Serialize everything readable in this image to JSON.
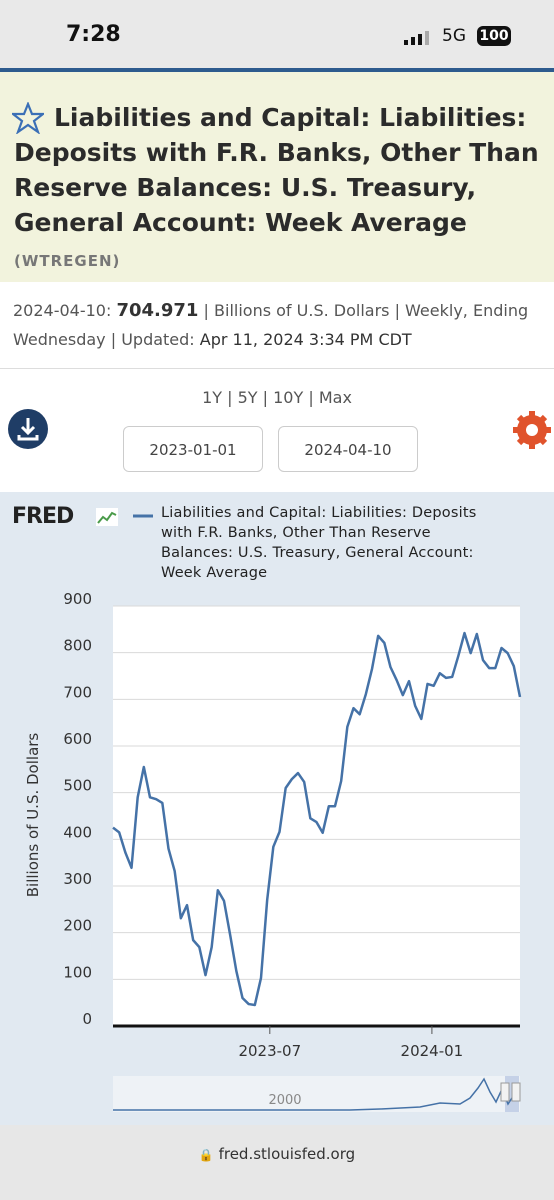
{
  "status": {
    "time": "7:28",
    "network": "5G",
    "battery": "100"
  },
  "header": {
    "title": "Liabilities and Capital: Liabilities: Deposits with F.R. Banks, Other Than Reserve Balances: U.S. Treasury, General Account: Week Average",
    "series_id": "(WTREGEN)"
  },
  "info": {
    "date": "2024-04-10:",
    "value": "704.971",
    "units": "| Billions of U.S. Dollars | Weekly, Ending Wednesday | Updated:",
    "updated": "Apr 11, 2024 3:34 PM CDT"
  },
  "range_links": [
    "1Y",
    "5Y",
    "10Y",
    "Max"
  ],
  "range_separator": "|",
  "date_inputs": [
    "2023-01-01",
    "2024-04-10"
  ],
  "logo": "FRED",
  "chart_data": {
    "type": "line",
    "y_label": "Billions of U.S. Dollars",
    "x": [
      "2023-01-04",
      "2023-01-11",
      "2023-01-18",
      "2023-01-25",
      "2023-02-01",
      "2023-02-08",
      "2023-02-15",
      "2023-02-22",
      "2023-03-01",
      "2023-03-08",
      "2023-03-15",
      "2023-03-22",
      "2023-03-29",
      "2023-04-05",
      "2023-04-12",
      "2023-04-19",
      "2023-04-26",
      "2023-05-03",
      "2023-05-10",
      "2023-05-17",
      "2023-05-24",
      "2023-05-31",
      "2023-06-07",
      "2023-06-14",
      "2023-06-21",
      "2023-06-28",
      "2023-07-05",
      "2023-07-12",
      "2023-07-19",
      "2023-07-26",
      "2023-08-02",
      "2023-08-09",
      "2023-08-16",
      "2023-08-23",
      "2023-08-30",
      "2023-09-06",
      "2023-09-13",
      "2023-09-20",
      "2023-09-27",
      "2023-10-04",
      "2023-10-11",
      "2023-10-18",
      "2023-10-25",
      "2023-11-01",
      "2023-11-08",
      "2023-11-15",
      "2023-11-22",
      "2023-11-29",
      "2023-12-06",
      "2023-12-13",
      "2023-12-20",
      "2023-12-27",
      "2024-01-03",
      "2024-01-10",
      "2024-01-17",
      "2024-01-24",
      "2024-01-31",
      "2024-02-07",
      "2024-02-14",
      "2024-02-21",
      "2024-02-28",
      "2024-03-06",
      "2024-03-13",
      "2024-03-20",
      "2024-03-27",
      "2024-04-03",
      "2024-04-10"
    ],
    "series": [
      {
        "name": "Liabilities and Capital: Liabilities: Deposits with F.R. Banks, Other Than Reserve Balances: U.S. Treasury, General Account: Week Average",
        "color": "#4572a7",
        "values": [
          425,
          415,
          372,
          339,
          490,
          555,
          490,
          486,
          478,
          380,
          332,
          231,
          259,
          184,
          169,
          109,
          169,
          291,
          268,
          195,
          118,
          60,
          47,
          45,
          103,
          270,
          384,
          416,
          510,
          529,
          542,
          523,
          445,
          437,
          414,
          471,
          471,
          525,
          641,
          681,
          668,
          711,
          765,
          836,
          821,
          769,
          741,
          709,
          739,
          686,
          658,
          733,
          729,
          756,
          746,
          748,
          793,
          842,
          799,
          840,
          784,
          767,
          767,
          810,
          799,
          771,
          704.971
        ]
      }
    ],
    "xlim": [
      "2023-01-04",
      "2024-04-10"
    ],
    "xticks": [
      {
        "value": "2023-07-01",
        "label": "2023-07"
      },
      {
        "value": "2024-01-01",
        "label": "2024-01"
      }
    ],
    "ylim": [
      0,
      900
    ],
    "yticks": [
      0,
      100,
      200,
      300,
      400,
      500,
      600,
      700,
      800,
      900
    ],
    "grid": true
  },
  "navigator": {
    "label": "2000"
  },
  "url_bar": {
    "url": "fred.stlouisfed.org"
  }
}
